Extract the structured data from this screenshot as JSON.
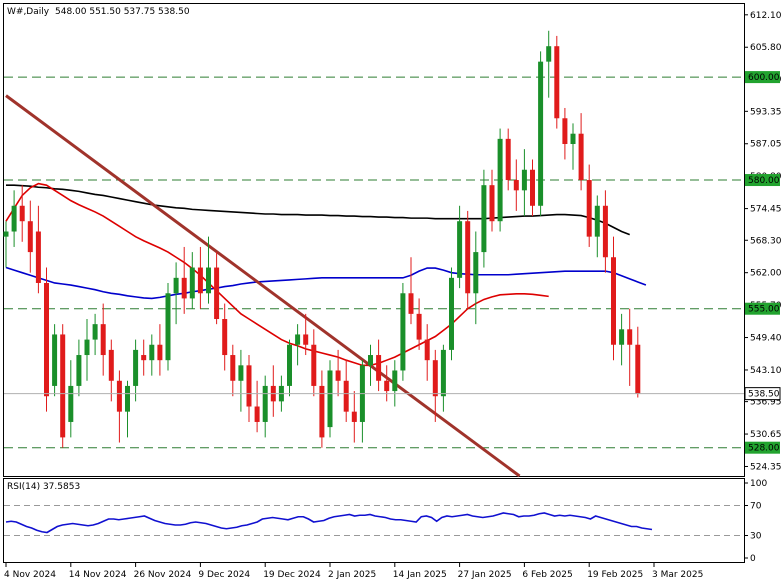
{
  "chart_data": {
    "type": "candlestick",
    "header": {
      "symbol": "W#,Daily",
      "ohlc": "548.00 551.50 537.75 538.50"
    },
    "price_ticks": [
      "612.10",
      "605.80",
      "599.60",
      "593.35",
      "587.05",
      "580.80",
      "574.45",
      "568.30",
      "562.00",
      "555.70",
      "549.40",
      "543.10",
      "536.95",
      "530.65",
      "524.35"
    ],
    "price_range": [
      522.5,
      614.2
    ],
    "horizontal_levels": [
      {
        "value": 600.0,
        "label": "600.00"
      },
      {
        "value": 580.0,
        "label": "580.00"
      },
      {
        "value": 555.0,
        "label": "555.00"
      },
      {
        "value": 528.0,
        "label": "528.00"
      }
    ],
    "last_price": {
      "value": 538.5,
      "label": "538.50"
    },
    "date_labels": [
      {
        "label": "4 Nov 2024",
        "index": 0
      },
      {
        "label": "14 Nov 2024",
        "index": 8
      },
      {
        "label": "26 Nov 2024",
        "index": 16
      },
      {
        "label": "9 Dec 2024",
        "index": 24
      },
      {
        "label": "19 Dec 2024",
        "index": 32
      },
      {
        "label": "2 Jan 2025",
        "index": 40
      },
      {
        "label": "14 Jan 2025",
        "index": 48
      },
      {
        "label": "27 Jan 2025",
        "index": 56
      },
      {
        "label": "6 Feb 2025",
        "index": 64
      },
      {
        "label": "19 Feb 2025",
        "index": 72
      },
      {
        "label": "3 Mar 2025",
        "index": 80
      }
    ],
    "candles": [
      [
        569.0,
        572.0,
        563.0,
        570.0
      ],
      [
        570.0,
        578.0,
        567.0,
        575.0
      ],
      [
        575.0,
        579.0,
        568.0,
        572.0
      ],
      [
        572.0,
        576.0,
        562.0,
        566.0
      ],
      [
        570.0,
        575.0,
        558.0,
        560.0
      ],
      [
        560.0,
        563.0,
        535.0,
        538.0
      ],
      [
        540.0,
        552.0,
        538.0,
        550.0
      ],
      [
        550.0,
        552.0,
        528.0,
        530.0
      ],
      [
        533.0,
        545.0,
        530.0,
        540.0
      ],
      [
        540.0,
        549.0,
        538.0,
        546.0
      ],
      [
        546.0,
        553.0,
        541.0,
        549.0
      ],
      [
        549.0,
        554.0,
        546.0,
        552.0
      ],
      [
        552.0,
        556.0,
        542.0,
        546.0
      ],
      [
        547.0,
        549.0,
        537.0,
        541.0
      ],
      [
        541.0,
        543.0,
        529.0,
        535.0
      ],
      [
        535.0,
        541.0,
        530.0,
        540.0
      ],
      [
        540.0,
        549.0,
        537.0,
        547.0
      ],
      [
        546.0,
        549.0,
        542.0,
        545.0
      ],
      [
        545.0,
        550.0,
        542.0,
        548.0
      ],
      [
        548.0,
        552.0,
        542.0,
        545.0
      ],
      [
        545.0,
        560.0,
        543.0,
        558.0
      ],
      [
        558.0,
        564.0,
        552.0,
        561.0
      ],
      [
        561.0,
        567.0,
        554.0,
        557.0
      ],
      [
        557.0,
        566.0,
        555.0,
        563.0
      ],
      [
        563.0,
        567.0,
        555.0,
        558.0
      ],
      [
        558.0,
        569.0,
        556.0,
        563.0
      ],
      [
        563.0,
        566.0,
        552.0,
        553.0
      ],
      [
        553.0,
        556.0,
        543.0,
        546.0
      ],
      [
        546.0,
        548.0,
        538.0,
        541.0
      ],
      [
        541.0,
        547.0,
        535.0,
        544.0
      ],
      [
        544.0,
        546.0,
        533.0,
        536.0
      ],
      [
        536.0,
        541.0,
        531.0,
        533.0
      ],
      [
        533.0,
        542.0,
        530.0,
        540.0
      ],
      [
        540.0,
        544.0,
        534.0,
        537.0
      ],
      [
        537.0,
        542.0,
        535.0,
        540.0
      ],
      [
        540.0,
        549.0,
        538.0,
        548.0
      ],
      [
        548.0,
        552.0,
        544.0,
        550.0
      ],
      [
        550.0,
        554.0,
        546.0,
        548.0
      ],
      [
        548.0,
        551.0,
        538.0,
        540.0
      ],
      [
        540.0,
        543.0,
        528.0,
        530.0
      ],
      [
        532.0,
        545.0,
        530.0,
        543.0
      ],
      [
        543.0,
        547.0,
        538.0,
        541.0
      ],
      [
        541.0,
        545.0,
        533.0,
        535.0
      ],
      [
        535.0,
        539.0,
        529.0,
        533.0
      ],
      [
        533.0,
        545.0,
        529.0,
        544.0
      ],
      [
        544.0,
        548.0,
        540.0,
        546.0
      ],
      [
        546.0,
        549.0,
        539.0,
        541.0
      ],
      [
        541.0,
        544.0,
        537.0,
        539.0
      ],
      [
        539.0,
        545.0,
        536.0,
        543.0
      ],
      [
        543.0,
        560.0,
        541.0,
        558.0
      ],
      [
        558.0,
        565.0,
        552.0,
        554.0
      ],
      [
        554.0,
        557.0,
        547.0,
        549.0
      ],
      [
        549.0,
        552.0,
        541.0,
        545.0
      ],
      [
        545.0,
        547.0,
        533.0,
        538.0
      ],
      [
        538.0,
        548.0,
        535.0,
        547.0
      ],
      [
        547.0,
        563.0,
        545.0,
        561.0
      ],
      [
        561.0,
        575.0,
        559.0,
        572.0
      ],
      [
        572.0,
        574.0,
        555.0,
        558.0
      ],
      [
        558.0,
        570.0,
        552.0,
        566.0
      ],
      [
        566.0,
        582.0,
        563.0,
        579.0
      ],
      [
        579.0,
        582.0,
        570.0,
        572.0
      ],
      [
        572.0,
        590.0,
        570.0,
        588.0
      ],
      [
        588.0,
        590.0,
        578.0,
        580.0
      ],
      [
        580.0,
        584.0,
        574.0,
        578.0
      ],
      [
        578.0,
        586.0,
        573.0,
        582.0
      ],
      [
        582.0,
        584.0,
        573.0,
        575.0
      ],
      [
        575.0,
        605.0,
        573.0,
        603.0
      ],
      [
        603.0,
        609.0,
        596.0,
        606.0
      ],
      [
        606.0,
        608.0,
        590.0,
        592.0
      ],
      [
        592.0,
        594.0,
        584.0,
        587.0
      ],
      [
        587.0,
        591.0,
        582.0,
        589.0
      ],
      [
        589.0,
        593.0,
        578.0,
        580.0
      ],
      [
        580.0,
        583.0,
        567.0,
        569.0
      ],
      [
        569.0,
        577.0,
        565.0,
        575.0
      ],
      [
        575.0,
        578.0,
        562.0,
        565.0
      ],
      [
        565.0,
        569.0,
        545.0,
        548.0
      ],
      [
        548.0,
        554.0,
        544.0,
        551.0
      ],
      [
        551.0,
        555.0,
        540.0,
        548.0
      ],
      [
        548.0,
        551.5,
        537.75,
        538.5
      ]
    ],
    "moving_averages": [
      {
        "color": "#000000",
        "values": [
          579.0,
          579.0,
          578.9,
          578.8,
          578.6,
          578.5,
          578.3,
          578.2,
          578.0,
          577.8,
          577.5,
          577.2,
          577.0,
          576.7,
          576.4,
          576.1,
          575.8,
          575.5,
          575.2,
          575.0,
          574.8,
          574.6,
          574.5,
          574.3,
          574.2,
          574.1,
          574.0,
          573.9,
          573.8,
          573.7,
          573.6,
          573.5,
          573.4,
          573.4,
          573.3,
          573.3,
          573.3,
          573.2,
          573.2,
          573.2,
          573.1,
          573.1,
          573.0,
          573.0,
          572.9,
          572.9,
          572.8,
          572.8,
          572.7,
          572.7,
          572.6,
          572.6,
          572.6,
          572.5,
          572.5,
          572.5,
          572.5,
          572.5,
          572.5,
          572.5,
          572.6,
          572.7,
          572.8,
          572.9,
          573.0,
          573.0,
          573.1,
          573.2,
          573.3,
          573.3,
          573.2,
          573.1,
          572.7,
          572.2,
          571.6,
          570.8,
          570.0,
          569.4
        ]
      },
      {
        "color": "#0000cc",
        "values": [
          563.0,
          562.5,
          562.0,
          561.5,
          561.0,
          560.5,
          560.0,
          559.8,
          559.6,
          559.3,
          559.0,
          558.7,
          558.3,
          558.0,
          557.8,
          557.5,
          557.3,
          557.1,
          557.0,
          557.2,
          557.5,
          557.8,
          558.0,
          558.3,
          558.5,
          558.8,
          559.0,
          559.3,
          559.5,
          559.8,
          560.0,
          560.2,
          560.3,
          560.4,
          560.5,
          560.6,
          560.7,
          560.8,
          560.9,
          561.0,
          561.0,
          561.0,
          561.0,
          561.0,
          561.0,
          561.0,
          561.0,
          561.0,
          561.0,
          561.0,
          561.5,
          562.3,
          562.9,
          562.9,
          562.5,
          562.0,
          561.8,
          561.7,
          561.6,
          561.6,
          561.6,
          561.6,
          561.6,
          561.7,
          561.8,
          561.9,
          562.0,
          562.1,
          562.2,
          562.3,
          562.3,
          562.3,
          562.3,
          562.3,
          562.3,
          562.0,
          561.4,
          560.8,
          560.2,
          559.6
        ]
      },
      {
        "color": "#dd0000",
        "values": [
          572.0,
          574.5,
          577.0,
          578.5,
          579.3,
          579.0,
          578.0,
          577.0,
          576.0,
          575.2,
          574.5,
          573.8,
          573.0,
          572.0,
          571.0,
          570.0,
          569.0,
          568.2,
          567.5,
          566.8,
          566.0,
          565.0,
          564.0,
          562.8,
          561.5,
          560.0,
          558.5,
          557.0,
          555.5,
          554.0,
          553.0,
          552.0,
          551.0,
          550.0,
          549.0,
          548.3,
          547.8,
          547.2,
          546.8,
          546.4,
          546.0,
          545.6,
          545.0,
          544.5,
          544.0,
          544.0,
          544.4,
          545.0,
          545.6,
          546.4,
          547.2,
          548.0,
          548.8,
          549.6,
          550.8,
          552.0,
          553.5,
          555.0,
          556.0,
          556.8,
          557.3,
          557.7,
          557.8,
          557.9,
          557.9,
          557.8,
          557.6,
          557.4
        ]
      }
    ],
    "trendline": {
      "color": "#a0332b",
      "start": {
        "index": 0,
        "value": 596.4
      },
      "end": {
        "index": 63.4,
        "value": 522.5
      }
    },
    "rsi": {
      "label": "RSI(14) 37.5853",
      "ticks": [
        "100",
        "70",
        "30",
        "0"
      ],
      "levels": [
        70,
        30
      ],
      "values": [
        48,
        49,
        48,
        45,
        42,
        40,
        37,
        35,
        34,
        38,
        42,
        44,
        45,
        46,
        45,
        44,
        43,
        44,
        46,
        49,
        52,
        52,
        51,
        52,
        53,
        54,
        55,
        56,
        53,
        50,
        48,
        46,
        45,
        44,
        44,
        45,
        47,
        48,
        47,
        46,
        44,
        42,
        40,
        39,
        40,
        41,
        43,
        44,
        46,
        48,
        52,
        53,
        54,
        53,
        52,
        51,
        53,
        55,
        55,
        52,
        48,
        49,
        50,
        53,
        55,
        56,
        57,
        58,
        56,
        57,
        57,
        58,
        56,
        55,
        54,
        52,
        51,
        51,
        50,
        49,
        48,
        55,
        56,
        54,
        49,
        54,
        56,
        55,
        56,
        57,
        58,
        56,
        55,
        54,
        55,
        56,
        58,
        60,
        59,
        58,
        55,
        56,
        56,
        57,
        59,
        60,
        58,
        56,
        57,
        56,
        57,
        56,
        55,
        54,
        52,
        56,
        54,
        52,
        50,
        48,
        46,
        44,
        42,
        42,
        40,
        39,
        38
      ]
    }
  }
}
